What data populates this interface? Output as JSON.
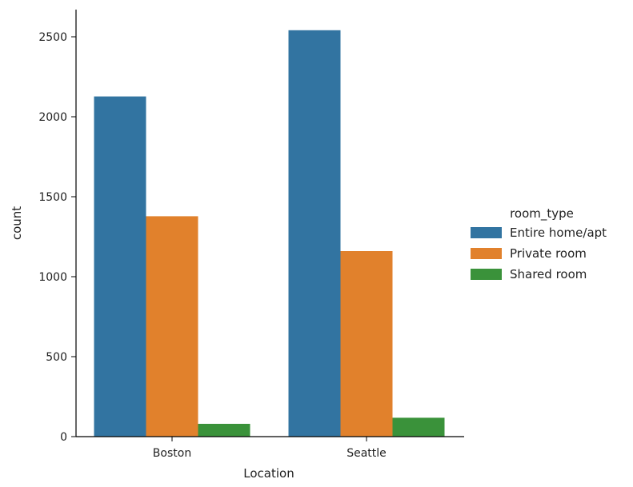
{
  "chart_data": {
    "type": "bar",
    "xlabel": "Location",
    "ylabel": "count",
    "categories": [
      "Boston",
      "Seattle"
    ],
    "series": [
      {
        "name": "Entire home/apt",
        "color": "#3274a1",
        "values": [
          2127,
          2541
        ]
      },
      {
        "name": "Private room",
        "color": "#e1812c",
        "values": [
          1378,
          1160
        ]
      },
      {
        "name": "Shared room",
        "color": "#3a923a",
        "values": [
          80,
          118
        ]
      }
    ],
    "ylim": [
      0,
      2670
    ],
    "yticks": [
      0,
      500,
      1000,
      1500,
      2000,
      2500
    ],
    "legend": {
      "title": "room_type",
      "placement": "right"
    },
    "grid": false,
    "spines": "left-bottom"
  }
}
